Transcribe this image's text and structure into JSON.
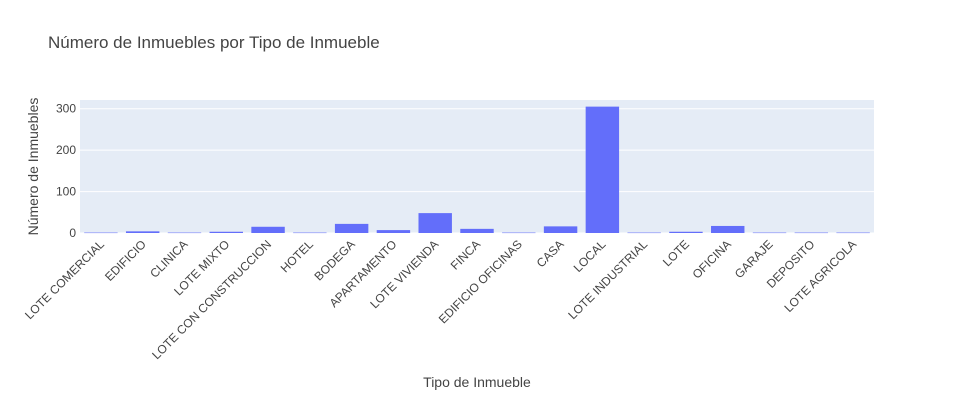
{
  "chart_data": {
    "type": "bar",
    "title": "Número de Inmuebles por Tipo de Inmueble",
    "xlabel": "Tipo de Inmueble",
    "ylabel": "Número de Inmuebles",
    "categories": [
      "LOTE COMERCIAL",
      "EDIFICIO",
      "CLINICA",
      "LOTE MIXTO",
      "LOTE CON CONSTRUCCION",
      "HOTEL",
      "BODEGA",
      "APARTAMENTO",
      "LOTE VIVIENDA",
      "FINCA",
      "EDIFICIO OFICINAS",
      "CASA",
      "LOCAL",
      "LOTE INDUSTRIAL",
      "LOTE",
      "OFICINA",
      "GARAJE",
      "DEPOSITO",
      "LOTE AGRICOLA"
    ],
    "values": [
      1,
      4,
      1,
      3,
      15,
      1,
      22,
      7,
      48,
      10,
      1,
      16,
      305,
      1,
      3,
      17,
      1,
      1,
      1
    ],
    "ylim": [
      0,
      321
    ],
    "yticks": [
      0,
      100,
      200,
      300
    ],
    "grid": true,
    "colors": {
      "bar": "#636efa",
      "plot_bg": "#e5ecf6",
      "grid": "#ffffff",
      "text": "#444444"
    }
  }
}
